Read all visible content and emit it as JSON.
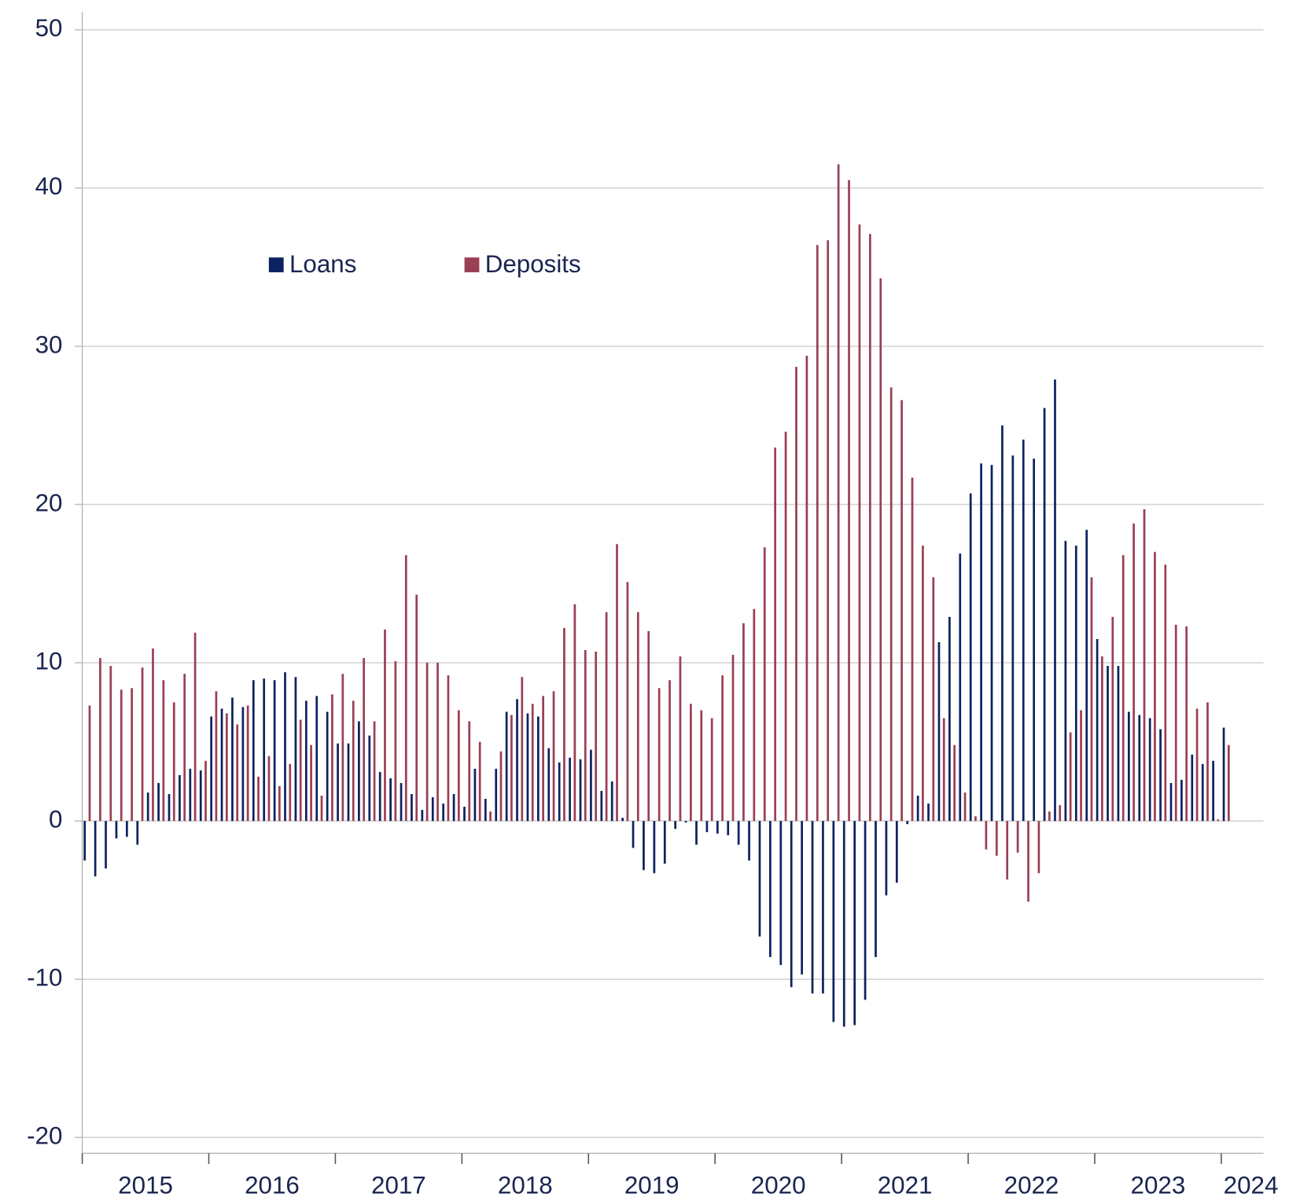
{
  "chart_data": {
    "type": "bar",
    "categories": [
      null,
      null,
      null,
      null,
      null,
      null,
      "2015",
      null,
      null,
      null,
      null,
      null,
      null,
      null,
      null,
      null,
      null,
      null,
      "2016",
      null,
      null,
      null,
      null,
      null,
      null,
      null,
      null,
      null,
      null,
      null,
      "2017",
      null,
      null,
      null,
      null,
      null,
      null,
      null,
      null,
      null,
      null,
      null,
      "2018",
      null,
      null,
      null,
      null,
      null,
      null,
      null,
      null,
      null,
      null,
      null,
      "2019",
      null,
      null,
      null,
      null,
      null,
      null,
      null,
      null,
      null,
      null,
      null,
      "2020",
      null,
      null,
      null,
      null,
      null,
      null,
      null,
      null,
      null,
      null,
      null,
      "2021",
      null,
      null,
      null,
      null,
      null,
      null,
      null,
      null,
      null,
      null,
      null,
      "2022",
      null,
      null,
      null,
      null,
      null,
      null,
      null,
      null,
      null,
      null,
      null,
      "2023",
      null,
      null,
      null,
      null,
      null,
      "2024"
    ],
    "series": [
      {
        "name": "Loans",
        "color": "#0d2260",
        "values": [
          -2.5,
          -3.5,
          -3.0,
          -1.1,
          -1.0,
          -1.5,
          1.8,
          2.4,
          1.7,
          2.9,
          3.3,
          3.2,
          6.6,
          7.1,
          7.8,
          7.2,
          8.9,
          9.0,
          8.9,
          9.4,
          9.1,
          7.6,
          7.9,
          6.9,
          4.9,
          4.9,
          6.3,
          5.4,
          3.1,
          2.7,
          2.4,
          1.7,
          0.7,
          1.5,
          1.1,
          1.7,
          0.9,
          3.3,
          1.4,
          3.3,
          6.9,
          7.7,
          6.8,
          6.6,
          4.6,
          3.7,
          4.0,
          3.9,
          4.5,
          1.9,
          2.5,
          0.2,
          -1.7,
          -3.1,
          -3.3,
          -2.7,
          -0.5,
          -0.1,
          -1.5,
          -0.7,
          -0.8,
          -0.9,
          -1.5,
          -2.5,
          -7.3,
          -8.6,
          -9.1,
          -10.5,
          -9.7,
          -10.9,
          -10.9,
          -12.7,
          -13.0,
          -12.9,
          -11.3,
          -8.6,
          -4.7,
          -3.9,
          -0.2,
          1.6,
          1.1,
          11.3,
          12.9,
          16.9,
          20.7,
          22.6,
          22.5,
          25.0,
          23.1,
          24.1,
          22.9,
          26.1,
          27.9,
          17.7,
          17.4,
          18.4,
          11.5,
          9.8,
          9.8,
          6.9,
          6.7,
          6.5,
          5.8,
          2.4,
          2.6,
          4.2,
          3.6,
          3.8,
          5.9
        ]
      },
      {
        "name": "Deposits",
        "color": "#9b3f54",
        "values": [
          7.3,
          10.3,
          9.8,
          8.3,
          8.4,
          9.7,
          10.9,
          8.9,
          7.5,
          9.3,
          11.9,
          3.8,
          8.2,
          6.8,
          6.1,
          7.3,
          2.8,
          4.1,
          2.2,
          3.6,
          6.4,
          4.8,
          1.6,
          8.0,
          9.3,
          7.6,
          10.3,
          6.3,
          12.1,
          10.1,
          16.8,
          14.3,
          10.0,
          10.0,
          9.2,
          7.0,
          6.3,
          5.0,
          0.6,
          4.4,
          6.7,
          9.1,
          7.4,
          7.9,
          8.2,
          12.2,
          13.7,
          10.8,
          10.7,
          13.2,
          17.5,
          15.1,
          13.2,
          12.0,
          8.4,
          8.9,
          10.4,
          7.4,
          7.0,
          6.5,
          9.2,
          10.5,
          12.5,
          13.4,
          17.3,
          23.6,
          24.6,
          28.7,
          29.4,
          36.4,
          36.7,
          41.5,
          40.5,
          37.7,
          37.1,
          34.3,
          27.4,
          26.6,
          21.7,
          17.4,
          15.4,
          6.5,
          4.8,
          1.8,
          0.3,
          -1.8,
          -2.2,
          -3.7,
          -2.0,
          -5.1,
          -3.3,
          0.6,
          1.0,
          5.6,
          7.0,
          15.4,
          10.4,
          12.9,
          16.8,
          18.8,
          19.7,
          17.0,
          16.2,
          12.4,
          12.3,
          7.1,
          7.5,
          0.1,
          4.8
        ]
      }
    ],
    "ylim": [
      -21,
      51
    ],
    "yticks": [
      -20,
      -10,
      0,
      10,
      20,
      30,
      40,
      50
    ],
    "grid": true,
    "legend": "top-left"
  }
}
